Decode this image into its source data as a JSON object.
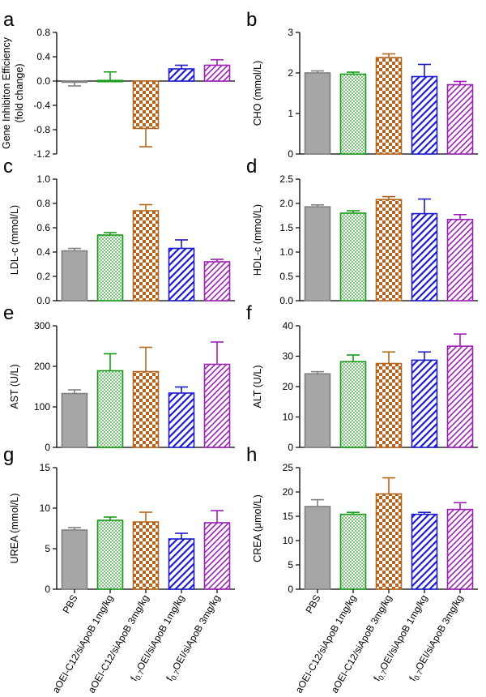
{
  "categories": [
    "PBS",
    "aOEI-C12/siApoB 1mg/kg",
    "aOEI-C12/siApoB 3mg/kg",
    "f0.7OEI/siApoB 1mg/kg",
    "f0.7OEI/siApoB 3mg/kg"
  ],
  "series_colors": {
    "PBS": "#808080",
    "aOEI-C12/siApoB 1mg/kg": "#1a9a1a",
    "aOEI-C12/siApoB 3mg/kg": "#b5651d",
    "f0.7OEI/siApoB 1mg/kg": "#1c1ccc",
    "f0.7OEI/siApoB 3mg/kg": "#9b22b5"
  },
  "chart_data": [
    {
      "type": "bar",
      "panel": "a",
      "ylabel": "Gene Inhibiton Efficiency (fold change)",
      "ylabel_lines": [
        "Gene Inhibiton Efficiency",
        "(fold change)"
      ],
      "ylim": [
        -1.2,
        0.8
      ],
      "yticks": [
        "0.8",
        "0.4",
        "0.0",
        "-0.4",
        "-0.8",
        "-1.2"
      ],
      "ytick_values": [
        0.8,
        0.4,
        0.0,
        -0.4,
        -0.8,
        -1.2
      ],
      "values": [
        -0.01,
        0.01,
        -0.78,
        0.2,
        0.26
      ],
      "errors": [
        0.07,
        0.14,
        0.3,
        0.06,
        0.09
      ]
    },
    {
      "type": "bar",
      "panel": "b",
      "ylabel": "CHO (mmol/L)",
      "ylim": [
        0,
        3
      ],
      "yticks": [
        "3",
        "2",
        "1",
        "0"
      ],
      "ytick_values": [
        3,
        2,
        1,
        0
      ],
      "values": [
        2.0,
        1.97,
        2.38,
        1.91,
        1.71
      ],
      "errors": [
        0.05,
        0.05,
        0.09,
        0.3,
        0.08
      ]
    },
    {
      "type": "bar",
      "panel": "c",
      "ylabel": "LDL-c (mmol/L)",
      "ylim": [
        0,
        1.0
      ],
      "yticks": [
        "1.0",
        "0.8",
        "0.6",
        "0.4",
        "0.2",
        "0.0"
      ],
      "ytick_values": [
        1.0,
        0.8,
        0.6,
        0.4,
        0.2,
        0.0
      ],
      "values": [
        0.41,
        0.54,
        0.74,
        0.43,
        0.32
      ],
      "errors": [
        0.02,
        0.02,
        0.05,
        0.07,
        0.02
      ]
    },
    {
      "type": "bar",
      "panel": "d",
      "ylabel": "HDL-c (mmol/L)",
      "ylim": [
        0,
        2.5
      ],
      "yticks": [
        "2.5",
        "2.0",
        "1.5",
        "1.0",
        "0.5",
        "0.0"
      ],
      "ytick_values": [
        2.5,
        2.0,
        1.5,
        1.0,
        0.5,
        0.0
      ],
      "values": [
        1.93,
        1.8,
        2.08,
        1.79,
        1.67
      ],
      "errors": [
        0.04,
        0.05,
        0.06,
        0.3,
        0.1
      ]
    },
    {
      "type": "bar",
      "panel": "e",
      "ylabel": "AST (U/L)",
      "ylim": [
        0,
        300
      ],
      "yticks": [
        "300",
        "200",
        "100",
        "0"
      ],
      "ytick_values": [
        300,
        200,
        100,
        0
      ],
      "values": [
        133,
        189,
        187,
        134,
        205
      ],
      "errors": [
        9,
        42,
        60,
        15,
        55
      ]
    },
    {
      "type": "bar",
      "panel": "f",
      "ylabel": "ALT (U/L)",
      "ylim": [
        0,
        40
      ],
      "yticks": [
        "40",
        "30",
        "20",
        "10",
        "0"
      ],
      "ytick_values": [
        40,
        30,
        20,
        10,
        0
      ],
      "values": [
        24.2,
        28.2,
        27.6,
        28.7,
        33.3
      ],
      "errors": [
        0.7,
        2.2,
        3.8,
        2.7,
        4.0
      ]
    },
    {
      "type": "bar",
      "panel": "g",
      "ylabel": "UREA (mmol/L)",
      "ylim": [
        0,
        15
      ],
      "yticks": [
        "15",
        "10",
        "5",
        "0"
      ],
      "ytick_values": [
        15,
        10,
        5,
        0
      ],
      "values": [
        7.3,
        8.5,
        8.3,
        6.2,
        8.2
      ],
      "errors": [
        0.3,
        0.4,
        1.2,
        0.7,
        1.5
      ]
    },
    {
      "type": "bar",
      "panel": "h",
      "ylabel": "CREA (μmol/L)",
      "ylim": [
        0,
        25
      ],
      "yticks": [
        "25",
        "20",
        "15",
        "10",
        "5",
        "0"
      ],
      "ytick_values": [
        25,
        20,
        15,
        10,
        5,
        0
      ],
      "values": [
        17.0,
        15.4,
        19.6,
        15.4,
        16.4
      ],
      "errors": [
        1.4,
        0.4,
        3.3,
        0.4,
        1.4
      ]
    }
  ]
}
